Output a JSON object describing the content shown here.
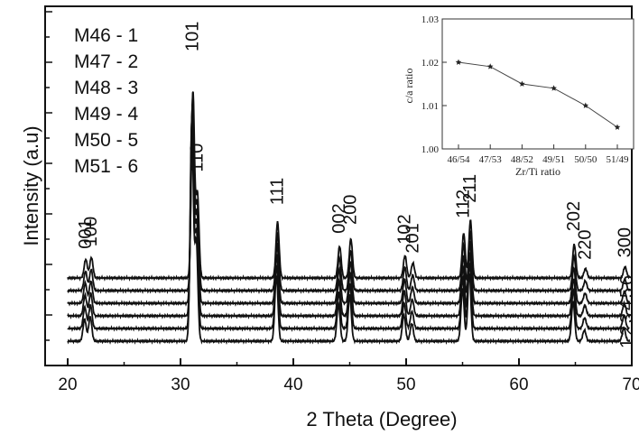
{
  "chart_data": [
    {
      "type": "line",
      "xlabel": "2 Theta (Degree)",
      "ylabel": "Intensity (a.u)",
      "xlim": [
        18,
        70
      ],
      "xticks": [
        "20",
        "30",
        "40",
        "50",
        "60",
        "70"
      ],
      "legend": [
        "M46 - 1",
        "M47 - 2",
        "M48 - 3",
        "M49 - 4",
        "M50 - 5",
        "M51 - 6"
      ],
      "curve_labels": [
        "1",
        "2",
        "3",
        "4",
        "5",
        "6"
      ],
      "peaks": [
        {
          "label": "001",
          "x": 21.5,
          "h": 0.1
        },
        {
          "label": "100",
          "x": 22.0,
          "h": 0.11
        },
        {
          "label": "101",
          "x": 31.0,
          "h": 1.0
        },
        {
          "label": "110",
          "x": 31.4,
          "h": 0.45
        },
        {
          "label": "111",
          "x": 38.5,
          "h": 0.3
        },
        {
          "label": "002",
          "x": 44.0,
          "h": 0.17
        },
        {
          "label": "200",
          "x": 45.0,
          "h": 0.21
        },
        {
          "label": "102",
          "x": 49.8,
          "h": 0.12
        },
        {
          "label": "201",
          "x": 50.5,
          "h": 0.08
        },
        {
          "label": "112",
          "x": 55.0,
          "h": 0.24
        },
        {
          "label": "211",
          "x": 55.6,
          "h": 0.31
        },
        {
          "label": "202",
          "x": 64.8,
          "h": 0.18
        },
        {
          "label": "220",
          "x": 65.8,
          "h": 0.05
        },
        {
          "label": "300",
          "x": 69.3,
          "h": 0.06
        }
      ],
      "series_count": 6,
      "line_color": "#111111"
    },
    {
      "type": "line",
      "xlabel": "Zr/Ti ratio",
      "ylabel": "c/a ratio",
      "categories": [
        "46/54",
        "47/53",
        "48/52",
        "49/51",
        "50/50",
        "51/49"
      ],
      "values": [
        1.02,
        1.019,
        1.015,
        1.014,
        1.01,
        1.005
      ],
      "ylim": [
        1.0,
        1.03
      ],
      "yticks": [
        "1.00",
        "1.01",
        "1.02",
        "1.03"
      ],
      "marker": "star"
    }
  ]
}
